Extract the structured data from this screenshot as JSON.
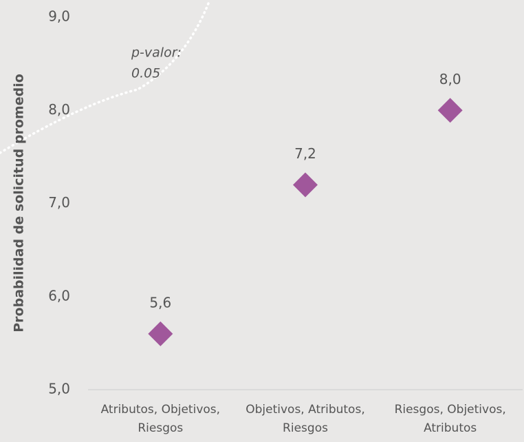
{
  "chart_data": {
    "type": "scatter",
    "y_label": "Probabilidad de solicitud promedio",
    "categories": [
      [
        "Atributos, Objetivos,",
        "Riesgos"
      ],
      [
        "Objetivos, Atributos,",
        "Riesgos"
      ],
      [
        "Riesgos, Objetivos,",
        "Atributos"
      ]
    ],
    "values": [
      5.6,
      7.2,
      8.0
    ],
    "value_labels": [
      "5,6",
      "7,2",
      "8,0"
    ],
    "color": "#a0579b",
    "ylim": [
      5,
      9
    ],
    "yticks": [
      {
        "value": 5,
        "label": "5,0"
      },
      {
        "value": 6,
        "label": "6,0"
      },
      {
        "value": 7,
        "label": "7,0"
      },
      {
        "value": 8,
        "label": "8,0"
      },
      {
        "value": 9,
        "label": "9,0"
      }
    ],
    "annotation": [
      "p-valor:",
      "0.05"
    ]
  }
}
